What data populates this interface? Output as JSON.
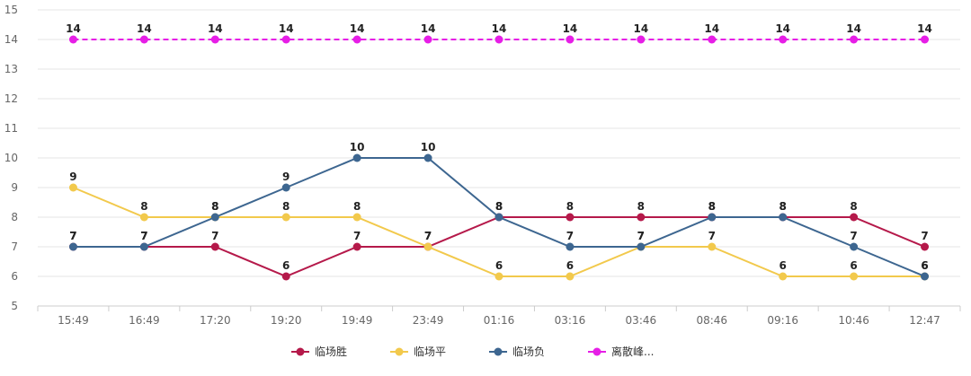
{
  "chart_data": {
    "type": "line",
    "categories": [
      "15:49",
      "16:49",
      "17:20",
      "19:20",
      "19:49",
      "23:49",
      "01:16",
      "03:16",
      "03:46",
      "08:46",
      "09:16",
      "10:46",
      "12:47"
    ],
    "ylim": [
      5,
      15
    ],
    "yticks": [
      5,
      6,
      7,
      8,
      9,
      10,
      11,
      12,
      13,
      14,
      15
    ],
    "grid": true,
    "legend_position": "bottom",
    "series": [
      {
        "name": "临场胜",
        "color": "#b5194a",
        "dash": false,
        "values": [
          7,
          7,
          7,
          6,
          7,
          7,
          8,
          8,
          8,
          8,
          8,
          8,
          7
        ]
      },
      {
        "name": "临场平",
        "color": "#f2c94c",
        "dash": false,
        "values": [
          9,
          8,
          8,
          8,
          8,
          7,
          6,
          6,
          7,
          7,
          6,
          6,
          6
        ]
      },
      {
        "name": "临场负",
        "color": "#3d6690",
        "dash": false,
        "values": [
          7,
          7,
          8,
          9,
          10,
          10,
          8,
          7,
          7,
          8,
          8,
          7,
          6
        ]
      },
      {
        "name": "离散峰...",
        "color": "#e61ee6",
        "dash": true,
        "values": [
          14,
          14,
          14,
          14,
          14,
          14,
          14,
          14,
          14,
          14,
          14,
          14,
          14
        ]
      }
    ]
  }
}
